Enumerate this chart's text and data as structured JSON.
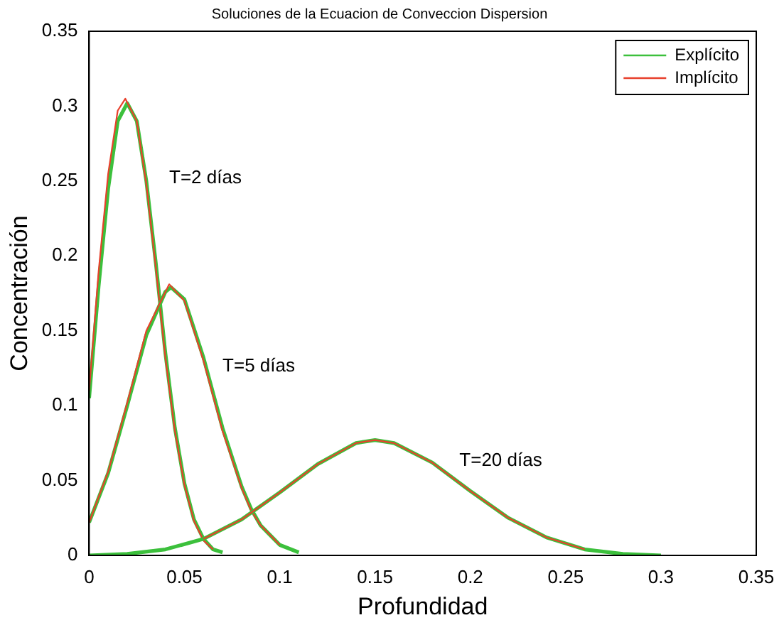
{
  "chart_data": {
    "type": "line",
    "title": "Soluciones de la Ecuacion de Conveccion Dispersion",
    "xlabel": "Profundidad",
    "ylabel": "Concentración",
    "xlim": [
      0,
      0.35
    ],
    "xticks": [
      0,
      0.05,
      0.1,
      0.15,
      0.2,
      0.25,
      0.3,
      0.35
    ],
    "ylim": [
      0,
      0.35
    ],
    "yticks": [
      0,
      0.05,
      0.1,
      0.15,
      0.2,
      0.25,
      0.3,
      0.35
    ],
    "grid": false,
    "legend": "top right",
    "marker": "none",
    "line_style": "solid",
    "series": [
      {
        "name": "Explícito",
        "color": "#3cc03c",
        "x": [
          0,
          0.005,
          0.01,
          0.015,
          0.02,
          0.025,
          0.03,
          0.035,
          0.04,
          0.045,
          0.05,
          0.055,
          0.06,
          0.065,
          0.07
        ],
        "values": [
          0.105,
          0.18,
          0.245,
          0.29,
          0.302,
          0.29,
          0.25,
          0.195,
          0.135,
          0.085,
          0.048,
          0.024,
          0.011,
          0.004,
          0.002
        ]
      },
      {
        "name": "Implícito",
        "color": "#e8402c",
        "x": [
          0,
          0.005,
          0.01,
          0.015,
          0.019,
          0.025,
          0.03,
          0.035,
          0.04,
          0.045,
          0.05,
          0.055,
          0.06,
          0.065
        ],
        "values": [
          0.11,
          0.19,
          0.255,
          0.297,
          0.305,
          0.29,
          0.248,
          0.192,
          0.132,
          0.083,
          0.047,
          0.023,
          0.01,
          0.004
        ]
      },
      {
        "color": "#3cc03c",
        "x": [
          0,
          0.01,
          0.02,
          0.03,
          0.04,
          0.043,
          0.05,
          0.06,
          0.07,
          0.08,
          0.085,
          0.09,
          0.1,
          0.11
        ],
        "values": [
          0.022,
          0.055,
          0.1,
          0.147,
          0.176,
          0.179,
          0.171,
          0.132,
          0.085,
          0.046,
          0.031,
          0.02,
          0.007,
          0.002
        ]
      },
      {
        "color": "#e8402c",
        "x": [
          0,
          0.01,
          0.02,
          0.03,
          0.042,
          0.05,
          0.06,
          0.07,
          0.08,
          0.085,
          0.09,
          0.1
        ],
        "values": [
          0.022,
          0.056,
          0.102,
          0.15,
          0.181,
          0.17,
          0.13,
          0.083,
          0.045,
          0.03,
          0.02,
          0.007
        ]
      },
      {
        "color": "#3cc03c",
        "x": [
          0,
          0.02,
          0.04,
          0.06,
          0.08,
          0.1,
          0.12,
          0.14,
          0.15,
          0.16,
          0.18,
          0.2,
          0.22,
          0.24,
          0.26,
          0.28,
          0.3
        ],
        "values": [
          0,
          0.001,
          0.004,
          0.011,
          0.024,
          0.042,
          0.061,
          0.075,
          0.077,
          0.075,
          0.062,
          0.043,
          0.025,
          0.012,
          0.004,
          0.001,
          0
        ]
      },
      {
        "color": "#e8402c",
        "x": [
          0.06,
          0.08,
          0.1,
          0.12,
          0.14,
          0.15,
          0.16,
          0.18,
          0.2,
          0.22,
          0.24,
          0.26
        ],
        "values": [
          0.011,
          0.024,
          0.042,
          0.061,
          0.075,
          0.077,
          0.075,
          0.062,
          0.043,
          0.025,
          0.012,
          0.004
        ]
      }
    ],
    "annotations": [
      "T=2 días",
      "T=5 días",
      "T=20 días"
    ]
  }
}
